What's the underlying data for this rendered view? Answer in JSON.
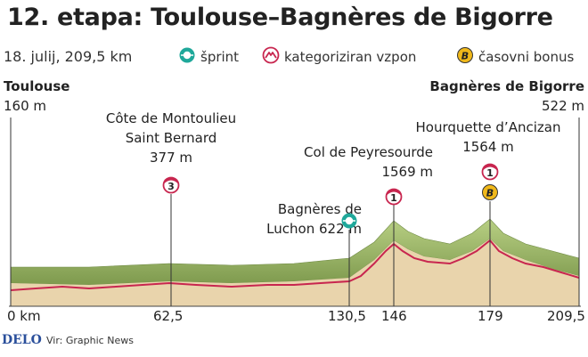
{
  "title": "12. etapa: Toulouse–Bagnères de Bigorre",
  "subtitle": "18. julij, 209,5 km",
  "legend": {
    "sprint": "šprint",
    "climb": "kategoriziran vzpon",
    "bonus": "časovni bonus"
  },
  "start": {
    "name": "Toulouse",
    "elevation": "160 m"
  },
  "finish": {
    "name": "Bagnères de Bigorre",
    "elevation": "522 m"
  },
  "points": [
    {
      "line1": "Côte de Montoulieu",
      "line2": "Saint Bernard",
      "line3": "377 m",
      "category": "3"
    },
    {
      "line1": "Bagnères de",
      "line2": "Luchon 622 m",
      "type": "sprint"
    },
    {
      "line1": "Col de Peyresourde",
      "line2": "1569 m",
      "category": "1"
    },
    {
      "line1": "Hourquette d’Ancizan",
      "line2": "1564 m",
      "category": "1",
      "bonus": "B"
    }
  ],
  "km_labels": [
    "0 km",
    "62,5",
    "130,5",
    "146",
    "179",
    "209,5"
  ],
  "footer": {
    "brand": "DELO",
    "source": "Vir: Graphic News"
  },
  "colors": {
    "climb_marker": "#c8264f",
    "sprint_marker": "#1fa89a",
    "bonus_marker": "#f0b81a",
    "terrain": "#e9d4ac",
    "terrain_top": "#9db86a"
  }
}
